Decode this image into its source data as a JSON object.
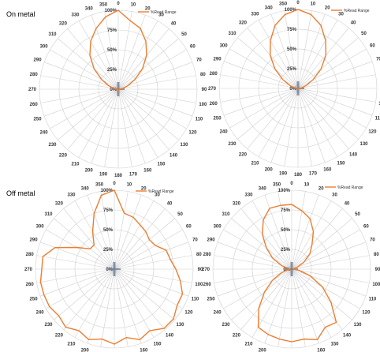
{
  "section_titles": [
    "On metal",
    "Off metal"
  ],
  "chart_data": [
    {
      "type": "polar-line",
      "section": "On metal",
      "legend": "%Read Range",
      "rlim": [
        0,
        100
      ],
      "radial_ticks": [
        "0%",
        "25%",
        "50%",
        "75%",
        "100%"
      ],
      "angle_ticks": [
        "0",
        "10",
        "20",
        "30",
        "40",
        "50",
        "60",
        "70",
        "80",
        "90",
        "100",
        "110",
        "120",
        "130",
        "140",
        "150",
        "160",
        "170",
        "180",
        "190",
        "200",
        "210",
        "220",
        "230",
        "240",
        "250",
        "260",
        "270",
        "280",
        "290",
        "300",
        "310",
        "320",
        "330",
        "340",
        "350"
      ],
      "series": [
        {
          "angles": [
            0,
            10,
            20,
            30,
            40,
            50,
            60,
            70,
            80,
            90,
            100,
            110,
            120,
            130,
            140,
            150,
            160,
            170,
            180,
            190,
            200,
            210,
            220,
            230,
            240,
            250,
            260,
            270,
            280,
            290,
            300,
            310,
            320,
            330,
            340,
            350
          ],
          "values": [
            100,
            88,
            82,
            70,
            56,
            40,
            24,
            13,
            6,
            2,
            1,
            1,
            1,
            1,
            1,
            1,
            1,
            2,
            3,
            2,
            1,
            1,
            1,
            1,
            1,
            1,
            1,
            3,
            6,
            13,
            24,
            40,
            56,
            70,
            82,
            93
          ]
        }
      ],
      "color": "#ED7D31"
    },
    {
      "type": "polar-line",
      "section": "On metal",
      "legend": "%Read Range",
      "rlim": [
        0,
        100
      ],
      "radial_ticks": [
        "0%",
        "25%",
        "50%",
        "75%",
        "100%"
      ],
      "angle_ticks": [
        "0",
        "10",
        "20",
        "30",
        "40",
        "50",
        "60",
        "70",
        "80",
        "90",
        "100",
        "110",
        "120",
        "130",
        "140",
        "150",
        "160",
        "170",
        "180",
        "190",
        "200",
        "210",
        "220",
        "230",
        "240",
        "250",
        "260",
        "270",
        "280",
        "290",
        "300",
        "310",
        "320",
        "330",
        "340",
        "350"
      ],
      "series": [
        {
          "angles": [
            0,
            10,
            20,
            30,
            40,
            50,
            60,
            70,
            80,
            90,
            100,
            110,
            120,
            130,
            140,
            150,
            160,
            170,
            180,
            190,
            200,
            210,
            220,
            230,
            240,
            250,
            260,
            270,
            280,
            290,
            300,
            310,
            320,
            330,
            340,
            350
          ],
          "values": [
            100,
            95,
            85,
            70,
            55,
            38,
            22,
            11,
            5,
            2,
            1,
            1,
            1,
            1,
            1,
            1,
            1,
            1,
            1,
            1,
            1,
            1,
            1,
            1,
            1,
            1,
            1,
            2,
            5,
            11,
            22,
            38,
            55,
            70,
            85,
            95
          ]
        }
      ],
      "color": "#ED7D31"
    },
    {
      "type": "polar-line",
      "section": "Off metal",
      "legend": "%Read Range",
      "rlim": [
        0,
        100
      ],
      "radial_ticks": [
        "0%",
        "25%",
        "50%",
        "75%",
        "100%"
      ],
      "angle_ticks": [
        "0",
        "10",
        "20",
        "30",
        "40",
        "50",
        "60",
        "70",
        "80",
        "90",
        "100",
        "110",
        "120",
        "130",
        "140",
        "150",
        "160",
        "170",
        "180",
        "190",
        "200",
        "210",
        "220",
        "230",
        "240",
        "250",
        "260",
        "270",
        "280",
        "290",
        "300",
        "310",
        "320",
        "330",
        "340",
        "350"
      ],
      "series": [
        {
          "angles": [
            0,
            10,
            20,
            30,
            40,
            50,
            60,
            70,
            80,
            90,
            100,
            110,
            120,
            130,
            140,
            150,
            160,
            170,
            180,
            190,
            200,
            210,
            220,
            230,
            240,
            250,
            260,
            270,
            280,
            290,
            300,
            310,
            320,
            330,
            340,
            350
          ],
          "values": [
            100,
            72,
            70,
            65,
            62,
            58,
            60,
            70,
            72,
            78,
            85,
            92,
            92,
            98,
            98,
            90,
            95,
            88,
            95,
            90,
            95,
            90,
            96,
            92,
            95,
            95,
            95,
            92,
            92,
            80,
            55,
            40,
            40,
            55,
            75,
            95
          ]
        }
      ],
      "color": "#ED7D31"
    },
    {
      "type": "polar-line",
      "section": "Off metal",
      "legend": "%Read Range",
      "rlim": [
        0,
        100
      ],
      "radial_ticks": [
        "0%",
        "25%",
        "50%",
        "75%",
        "100%"
      ],
      "angle_ticks": [
        "0",
        "10",
        "20",
        "30",
        "40",
        "50",
        "60",
        "70",
        "80",
        "90",
        "100",
        "110",
        "120",
        "130",
        "140",
        "150",
        "160",
        "170",
        "180",
        "190",
        "200",
        "210",
        "220",
        "230",
        "240",
        "250",
        "260",
        "270",
        "280",
        "290",
        "300",
        "310",
        "320",
        "330",
        "340",
        "350"
      ],
      "series": [
        {
          "angles": [
            0,
            10,
            20,
            30,
            40,
            50,
            60,
            70,
            80,
            90,
            100,
            110,
            120,
            130,
            140,
            150,
            160,
            170,
            180,
            190,
            200,
            210,
            220,
            230,
            240,
            250,
            260,
            270,
            280,
            290,
            300,
            310,
            320,
            330,
            340,
            350
          ],
          "values": [
            82,
            75,
            68,
            55,
            40,
            30,
            18,
            8,
            2,
            2,
            10,
            25,
            45,
            65,
            88,
            85,
            95,
            90,
            92,
            90,
            88,
            85,
            65,
            45,
            28,
            14,
            5,
            2,
            5,
            14,
            28,
            42,
            58,
            72,
            82,
            82
          ]
        }
      ],
      "color": "#ED7D31"
    }
  ]
}
